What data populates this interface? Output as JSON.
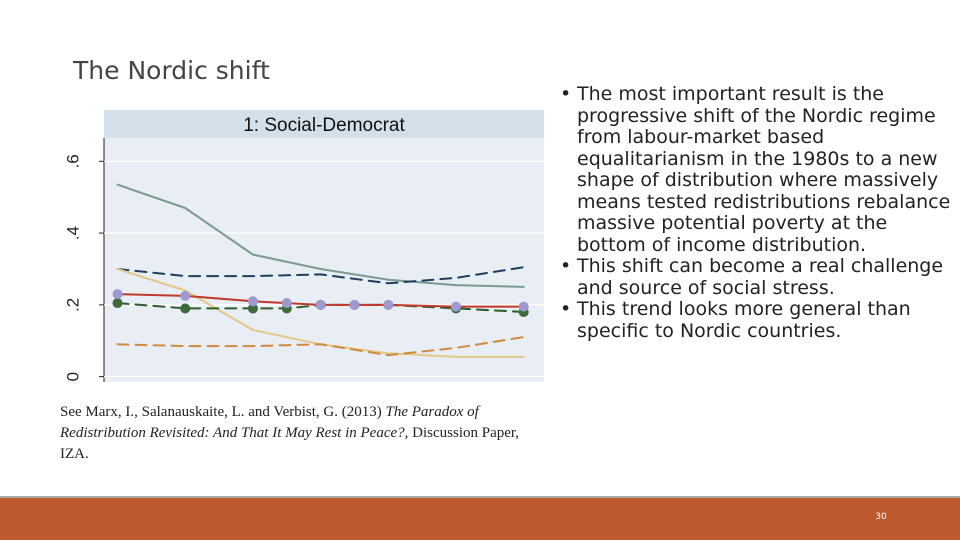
{
  "slide": {
    "title": "The Nordic shift",
    "page_number": "30"
  },
  "citation": {
    "prefix": "See Marx, I., Salanauskaite, L. and Verbist, G. (2013) ",
    "title_italic": "The Paradox of Redistribution Revisited: And That It May Rest in Peace?",
    "suffix": ", Discussion Paper, IZA."
  },
  "bullets": [
    "The most important result is the progressive shift of the Nordic regime from labour-market based equalitarianism in the 1980s to a new shape of distribution where massively means tested redistributions rebalance massive potential poverty at the bottom of income distribution.",
    "This shift can become a real challenge and source of social stress.",
    "This trend looks more general than specific to Nordic countries."
  ],
  "colors": {
    "footer": "#bf5a2e",
    "plot_bg": "#e8eef3",
    "header_bg": "#d3e0ea"
  },
  "chart_data": {
    "type": "line",
    "panel_title": "1: Social-Democrat",
    "x": [
      1,
      2,
      3,
      4,
      5,
      6,
      7,
      8,
      9,
      10,
      11,
      12,
      13
    ],
    "xlim": [
      0.6,
      13.6
    ],
    "ylim": [
      -0.015,
      0.665
    ],
    "yticks": [
      0,
      0.2,
      0.4,
      0.6
    ],
    "ytick_labels": [
      "0",
      ".2",
      ".4",
      ".6"
    ],
    "grid": true,
    "series": [
      {
        "style": "solid",
        "color": "#7a9a93",
        "markers": false,
        "x": [
          1,
          3,
          5,
          7,
          9,
          11,
          13
        ],
        "values": [
          0.535,
          0.47,
          0.34,
          0.3,
          0.27,
          0.255,
          0.25
        ]
      },
      {
        "style": "dashed",
        "color": "#1f3f5f",
        "markers": false,
        "x": [
          1,
          3,
          5,
          7,
          9,
          11,
          13
        ],
        "values": [
          0.3,
          0.28,
          0.28,
          0.285,
          0.26,
          0.275,
          0.305
        ]
      },
      {
        "style": "solid",
        "color": "#e2c98a",
        "markers": false,
        "x": [
          1,
          3,
          5,
          7,
          9,
          11,
          13
        ],
        "values": [
          0.3,
          0.24,
          0.13,
          0.09,
          0.065,
          0.055,
          0.055
        ]
      },
      {
        "style": "dashed",
        "color": "#d08a3e",
        "markers": false,
        "x": [
          1,
          3,
          5,
          7,
          9,
          11,
          13
        ],
        "values": [
          0.09,
          0.085,
          0.085,
          0.09,
          0.06,
          0.08,
          0.11
        ]
      },
      {
        "style": "dashed",
        "color": "#2e5e2e",
        "markers": true,
        "marker_color": "#3f6b3a",
        "x": [
          1,
          3,
          5,
          6,
          7,
          8,
          9,
          11,
          13
        ],
        "values": [
          0.205,
          0.19,
          0.19,
          0.19,
          0.2,
          0.2,
          0.2,
          0.19,
          0.18
        ]
      },
      {
        "style": "solid",
        "color": "#c0392b",
        "markers": true,
        "marker_color": "#9e99cf",
        "x": [
          1,
          3,
          5,
          6,
          7,
          8,
          9,
          11,
          13
        ],
        "values": [
          0.23,
          0.225,
          0.21,
          0.205,
          0.2,
          0.2,
          0.2,
          0.195,
          0.195
        ]
      }
    ]
  }
}
